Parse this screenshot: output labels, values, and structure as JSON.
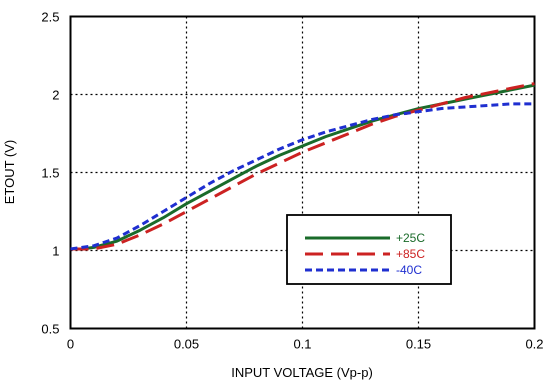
{
  "chart_data": {
    "type": "line",
    "title": "",
    "xlabel": "INPUT VOLTAGE (Vp-p)",
    "ylabel": "ETOUT (V)",
    "xlim": [
      0,
      0.2
    ],
    "ylim": [
      0.5,
      2.5
    ],
    "x_ticks": [
      0,
      0.05,
      0.1,
      0.15,
      0.2
    ],
    "y_ticks": [
      0.5,
      1,
      1.5,
      2,
      2.5
    ],
    "x_tick_labels": [
      "0",
      "0.05",
      "0.1",
      "0.15",
      "0.2"
    ],
    "y_tick_labels": [
      "0.5",
      "1",
      "1.5",
      "2",
      "2.5"
    ],
    "grid": true,
    "legend_position": "lower-right",
    "series": [
      {
        "name": "+25C",
        "color": "#1a6b2a",
        "style": "solid",
        "x": [
          0,
          0.005,
          0.01,
          0.02,
          0.03,
          0.04,
          0.05,
          0.06,
          0.07,
          0.08,
          0.09,
          0.1,
          0.11,
          0.12,
          0.13,
          0.14,
          0.15,
          0.16,
          0.17,
          0.18,
          0.19,
          0.2
        ],
        "y": [
          1.01,
          1.01,
          1.02,
          1.06,
          1.13,
          1.21,
          1.3,
          1.38,
          1.46,
          1.54,
          1.61,
          1.67,
          1.73,
          1.78,
          1.83,
          1.87,
          1.91,
          1.94,
          1.97,
          2.0,
          2.03,
          2.06
        ]
      },
      {
        "name": "+85C",
        "color": "#cc2222",
        "style": "long-dash",
        "x": [
          0,
          0.005,
          0.01,
          0.02,
          0.03,
          0.04,
          0.05,
          0.06,
          0.07,
          0.08,
          0.09,
          0.1,
          0.11,
          0.12,
          0.13,
          0.14,
          0.15,
          0.16,
          0.17,
          0.18,
          0.19,
          0.2
        ],
        "y": [
          1.01,
          1.01,
          1.01,
          1.04,
          1.1,
          1.17,
          1.25,
          1.33,
          1.41,
          1.49,
          1.56,
          1.63,
          1.69,
          1.75,
          1.81,
          1.86,
          1.9,
          1.94,
          1.98,
          2.01,
          2.04,
          2.07
        ]
      },
      {
        "name": "-40C",
        "color": "#1f2fd0",
        "style": "short-dash",
        "x": [
          0,
          0.005,
          0.01,
          0.02,
          0.03,
          0.04,
          0.05,
          0.06,
          0.07,
          0.08,
          0.09,
          0.1,
          0.11,
          0.12,
          0.13,
          0.14,
          0.15,
          0.16,
          0.17,
          0.18,
          0.19,
          0.2
        ],
        "y": [
          1.01,
          1.02,
          1.03,
          1.08,
          1.16,
          1.25,
          1.34,
          1.43,
          1.51,
          1.58,
          1.65,
          1.71,
          1.76,
          1.8,
          1.84,
          1.87,
          1.89,
          1.91,
          1.92,
          1.93,
          1.94,
          1.94
        ]
      }
    ]
  }
}
